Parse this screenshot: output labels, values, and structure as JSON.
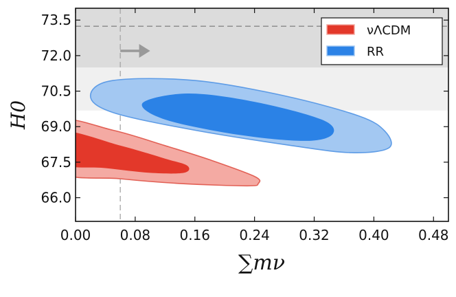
{
  "chart_data": {
    "type": "contour",
    "xlabel": "∑mν",
    "ylabel": "H0",
    "xlim": [
      0.0,
      0.5
    ],
    "ylim": [
      65.0,
      74.0
    ],
    "x_ticks": [
      "0.00",
      "0.08",
      "0.16",
      "0.24",
      "0.32",
      "0.40",
      "0.48"
    ],
    "x_tick_values": [
      0.0,
      0.08,
      0.16,
      0.24,
      0.32,
      0.4,
      0.48
    ],
    "y_ticks": [
      "66.0",
      "67.5",
      "69.0",
      "70.5",
      "72.0",
      "73.5"
    ],
    "y_tick_values": [
      66.0,
      67.5,
      69.0,
      70.5,
      72.0,
      73.5
    ],
    "grid": false,
    "legend_position": "top-right",
    "bands": [
      {
        "name": "outer-band",
        "ymin": 69.68,
        "ymax": 74.0,
        "color": "#f0f0f0"
      },
      {
        "name": "inner-band",
        "ymin": 71.5,
        "ymax": 74.0,
        "color": "#dcdcdc"
      }
    ],
    "reference_lines": {
      "horizontal": {
        "y": 73.24,
        "color": "#666666"
      },
      "vertical": {
        "x": 0.06,
        "color": "#aaaaaa"
      }
    },
    "arrow": {
      "x_start": 0.06,
      "x_end": 0.1,
      "y": 72.2,
      "color": "#999999"
    },
    "series": [
      {
        "name": "νΛCDM",
        "colors": {
          "inner": "#e3382a",
          "outer": "#f4aaa3",
          "edge": "#e26055"
        },
        "contours": [
          {
            "level": "95%",
            "points": [
              [
                -0.02,
                69.2
              ],
              [
                0.05,
                68.85
              ],
              [
                0.12,
                68.2
              ],
              [
                0.18,
                67.6
              ],
              [
                0.24,
                66.9
              ],
              [
                0.245,
                66.6
              ],
              [
                0.23,
                66.5
              ],
              [
                0.14,
                66.6
              ],
              [
                0.06,
                66.8
              ],
              [
                -0.02,
                67.1
              ]
            ]
          },
          {
            "level": "68%",
            "points": [
              [
                -0.02,
                68.8
              ],
              [
                0.06,
                68.2
              ],
              [
                0.12,
                67.65
              ],
              [
                0.15,
                67.35
              ],
              [
                0.145,
                67.05
              ],
              [
                0.1,
                67.05
              ],
              [
                0.04,
                67.25
              ],
              [
                -0.02,
                67.45
              ]
            ]
          }
        ]
      },
      {
        "name": "RR",
        "colors": {
          "inner": "#2b82e6",
          "outer": "#a3c8f2",
          "edge": "#5e9ce6"
        },
        "contours": [
          {
            "level": "95%",
            "points": [
              [
                0.02,
                70.3
              ],
              [
                0.05,
                70.95
              ],
              [
                0.16,
                70.95
              ],
              [
                0.28,
                70.3
              ],
              [
                0.38,
                69.45
              ],
              [
                0.415,
                68.8
              ],
              [
                0.42,
                68.1
              ],
              [
                0.37,
                67.9
              ],
              [
                0.29,
                68.2
              ],
              [
                0.16,
                68.85
              ],
              [
                0.05,
                69.6
              ]
            ]
          },
          {
            "level": "68%",
            "points": [
              [
                0.09,
                70.0
              ],
              [
                0.15,
                70.4
              ],
              [
                0.24,
                70.05
              ],
              [
                0.33,
                69.3
              ],
              [
                0.345,
                68.7
              ],
              [
                0.31,
                68.4
              ],
              [
                0.22,
                68.65
              ],
              [
                0.12,
                69.3
              ]
            ]
          }
        ]
      }
    ]
  }
}
